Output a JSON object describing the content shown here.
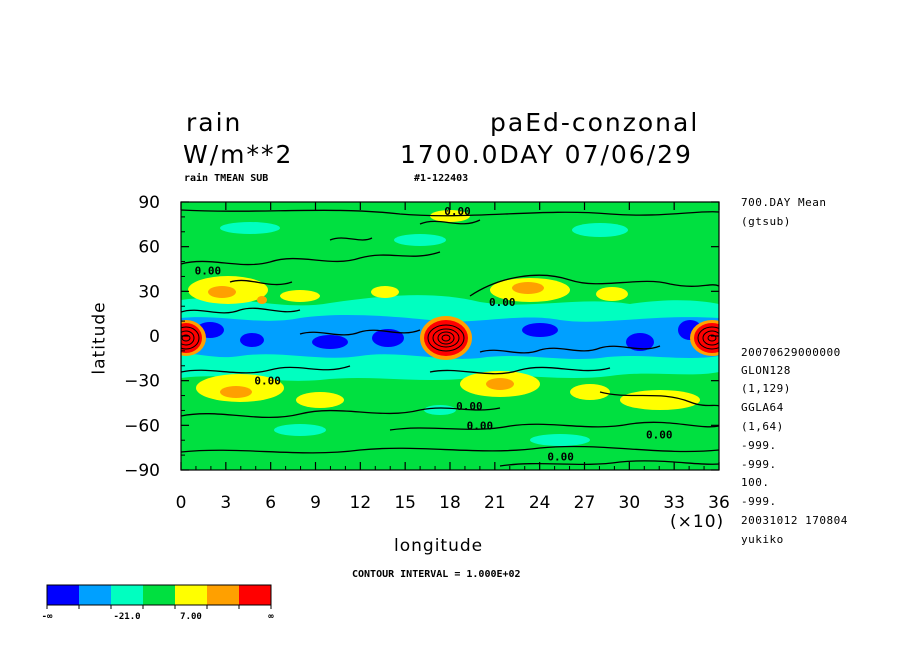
{
  "header": {
    "variable": "rain",
    "experiment": "paEd-conzonal",
    "units": "W/m**2",
    "time": "1700.0DAY 07/06/29",
    "subtitle_left": "rain TMEAN SUB",
    "subtitle_right": "#1-122403"
  },
  "side_info": {
    "top": [
      "700.DAY Mean",
      "(gtsub)"
    ],
    "bottom": [
      "20070629000000",
      "GLON128",
      "(1,129)",
      "GGLA64",
      "(1,64)",
      "-999.",
      "-999.",
      "100.",
      "-999.",
      "20031012 170804",
      "yukiko"
    ]
  },
  "footer": {
    "contour_interval": "CONTOUR INTERVAL = 1.000E+02"
  },
  "chart_data": {
    "type": "heatmap",
    "xlabel": "longitude",
    "ylabel": "latitude",
    "x_multiplier": "(×10)",
    "xlim": [
      0,
      36
    ],
    "ylim": [
      -90,
      90
    ],
    "x_tick_labels": [
      "0",
      "3",
      "6",
      "9",
      "12",
      "15",
      "18",
      "21",
      "24",
      "27",
      "30",
      "33",
      "36"
    ],
    "y_tick_labels": [
      "90",
      "60",
      "30",
      "0",
      "−30",
      "−60",
      "−90"
    ],
    "y_tick_values": [
      90,
      60,
      30,
      0,
      -30,
      -60,
      -90
    ],
    "contour_labels": [
      {
        "text": "0.00",
        "x": 18.5,
        "y": 84
      },
      {
        "text": "0.00",
        "x": 1.8,
        "y": 44
      },
      {
        "text": "0.00",
        "x": 21.5,
        "y": 23
      },
      {
        "text": "0.00",
        "x": 5.8,
        "y": -30
      },
      {
        "text": "0.00",
        "x": 19.3,
        "y": -47
      },
      {
        "text": "0.00",
        "x": 20.0,
        "y": -60
      },
      {
        "text": "0.00",
        "x": 32.0,
        "y": -66
      },
      {
        "text": "0.00",
        "x": 25.4,
        "y": -81
      }
    ],
    "colorbar": {
      "colors": [
        "#0000ff",
        "#00a0ff",
        "#00ffc0",
        "#00e040",
        "#ffff00",
        "#ffa000",
        "#ff0000"
      ],
      "labels": [
        "-∞",
        "-21.0",
        "7.00",
        "∞"
      ]
    },
    "grid": false
  }
}
